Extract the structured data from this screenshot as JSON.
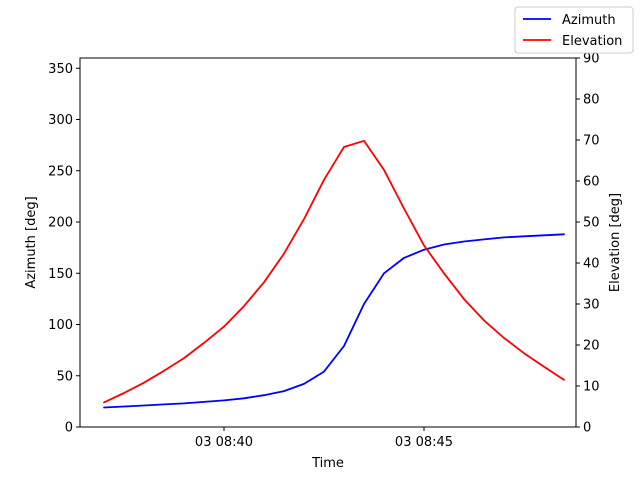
{
  "chart_data": {
    "type": "line",
    "title": "",
    "xlabel": "Time",
    "ylabel_left": "Azimuth [deg]",
    "ylabel_right": "Elevation [deg]",
    "x_tick_labels": [
      "03 08:40",
      "03 08:45"
    ],
    "x_tick_minutes": [
      40,
      45
    ],
    "xlim_minutes": [
      36.4,
      48.8
    ],
    "ylim_left": [
      0,
      360
    ],
    "yticks_left": [
      0,
      50,
      100,
      150,
      200,
      250,
      300,
      350
    ],
    "ylim_right": [
      0,
      90
    ],
    "yticks_right": [
      0,
      10,
      20,
      30,
      40,
      50,
      60,
      70,
      80,
      90
    ],
    "legend_position": "top-right",
    "grid": false,
    "series": [
      {
        "name": "Azimuth",
        "axis": "left",
        "color": "#0000ff",
        "x_minutes": [
          37.0,
          37.5,
          38.0,
          38.5,
          39.0,
          39.5,
          40.0,
          40.5,
          41.0,
          41.5,
          42.0,
          42.5,
          43.0,
          43.5,
          44.0,
          44.5,
          45.0,
          45.5,
          46.0,
          46.5,
          47.0,
          47.5,
          48.0,
          48.5
        ],
        "values": [
          19,
          20,
          21,
          22,
          23,
          24.5,
          26,
          28,
          31,
          35,
          42,
          54,
          79,
          120,
          150,
          165,
          173,
          178,
          181,
          183,
          185,
          186,
          187,
          188
        ]
      },
      {
        "name": "Elevation",
        "axis": "right",
        "color": "#ff0000",
        "x_minutes": [
          37.0,
          37.5,
          38.0,
          38.5,
          39.0,
          39.5,
          40.0,
          40.5,
          41.0,
          41.5,
          42.0,
          42.5,
          43.0,
          43.5,
          44.0,
          44.5,
          45.0,
          45.5,
          46.0,
          46.5,
          47.0,
          47.5,
          48.0,
          48.5
        ],
        "values": [
          6,
          8.3,
          10.8,
          13.7,
          16.8,
          20.5,
          24.5,
          29.5,
          35.3,
          42.3,
          50.7,
          60.3,
          68.3,
          69.8,
          62.7,
          53.3,
          44.3,
          37.5,
          31.2,
          26.0,
          21.7,
          18.0,
          14.7,
          11.5
        ]
      }
    ]
  }
}
